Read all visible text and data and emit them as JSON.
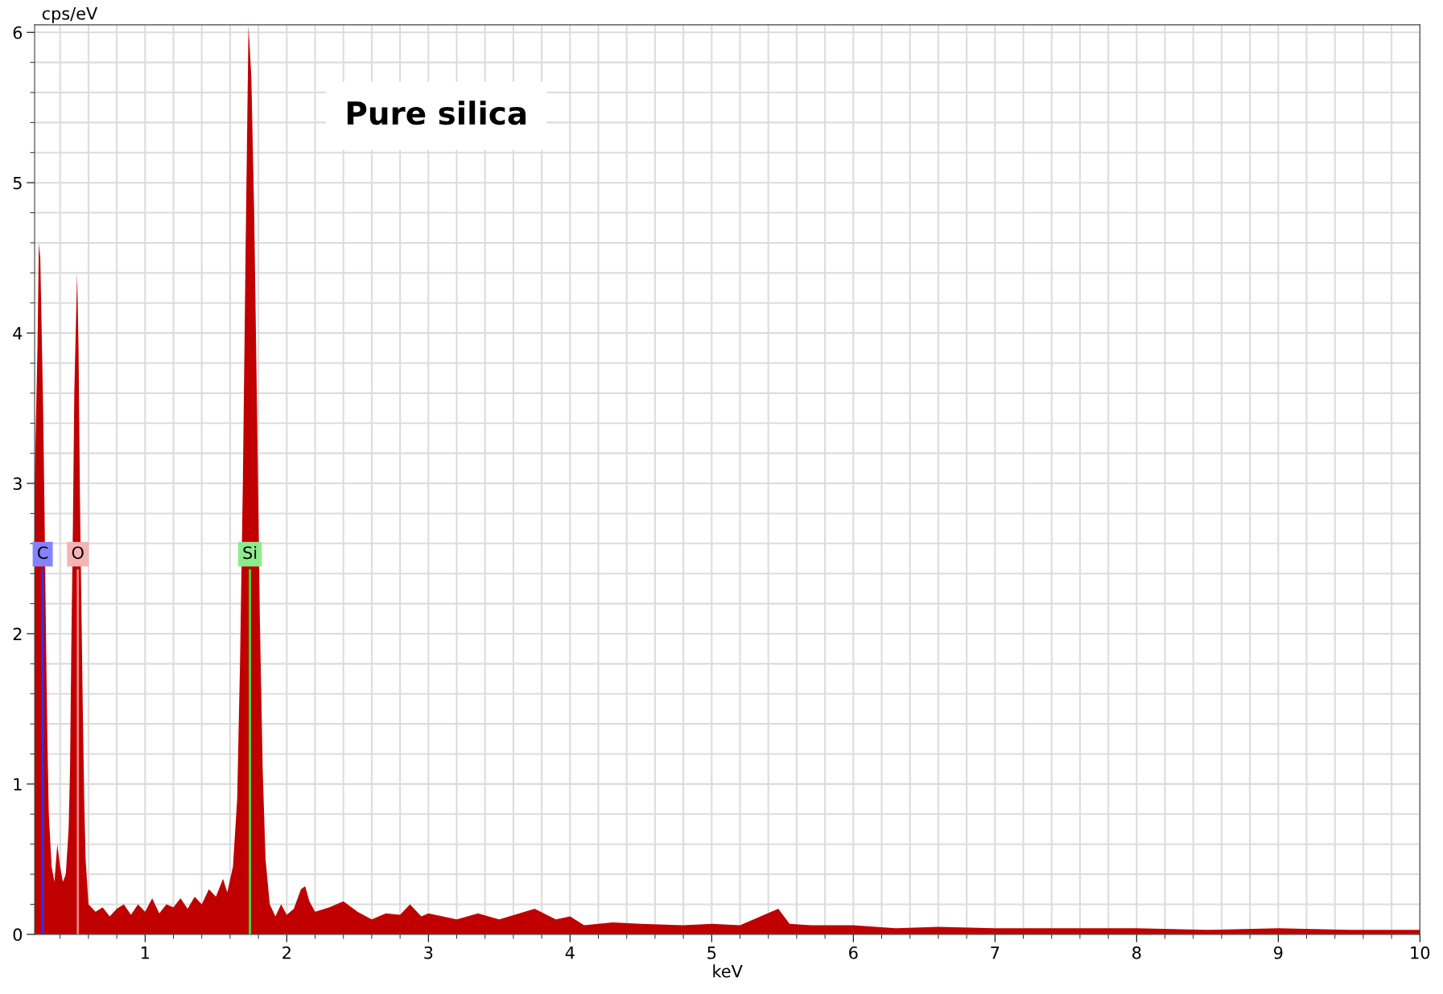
{
  "chart_data": {
    "type": "area",
    "xlabel": "keV",
    "ylabel": "cps/eV",
    "annotations": [
      "Pure silica"
    ],
    "x": [
      0.22,
      0.24,
      0.25,
      0.26,
      0.27,
      0.28,
      0.29,
      0.3,
      0.31,
      0.32,
      0.34,
      0.36,
      0.38,
      0.4,
      0.42,
      0.44,
      0.46,
      0.47,
      0.48,
      0.49,
      0.5,
      0.51,
      0.52,
      0.53,
      0.54,
      0.55,
      0.56,
      0.57,
      0.58,
      0.6,
      0.65,
      0.7,
      0.75,
      0.8,
      0.85,
      0.9,
      0.95,
      1.0,
      1.05,
      1.1,
      1.15,
      1.2,
      1.25,
      1.3,
      1.35,
      1.4,
      1.45,
      1.5,
      1.55,
      1.58,
      1.62,
      1.65,
      1.67,
      1.69,
      1.71,
      1.73,
      1.75,
      1.77,
      1.79,
      1.81,
      1.83,
      1.85,
      1.88,
      1.92,
      1.96,
      2.0,
      2.05,
      2.1,
      2.13,
      2.16,
      2.2,
      2.3,
      2.4,
      2.5,
      2.6,
      2.7,
      2.8,
      2.87,
      2.95,
      3.0,
      3.2,
      3.35,
      3.5,
      3.75,
      3.9,
      4.0,
      4.1,
      4.3,
      4.5,
      4.8,
      5.0,
      5.2,
      5.47,
      5.55,
      5.7,
      6.0,
      6.3,
      6.6,
      7.0,
      7.5,
      8.0,
      8.5,
      9.0,
      9.5,
      10.0
    ],
    "series": [
      {
        "color": "#c00000",
        "values": [
          3.0,
          3.9,
          4.6,
          4.5,
          4.0,
          3.5,
          2.8,
          2.0,
          1.3,
          0.8,
          0.45,
          0.35,
          0.6,
          0.45,
          0.35,
          0.4,
          0.7,
          1.1,
          2.0,
          2.7,
          3.6,
          4.0,
          4.4,
          3.9,
          2.9,
          2.2,
          1.5,
          0.9,
          0.5,
          0.2,
          0.15,
          0.18,
          0.12,
          0.17,
          0.2,
          0.13,
          0.2,
          0.15,
          0.24,
          0.14,
          0.2,
          0.18,
          0.24,
          0.17,
          0.25,
          0.2,
          0.3,
          0.25,
          0.37,
          0.28,
          0.45,
          0.9,
          1.8,
          3.0,
          4.6,
          6.05,
          5.7,
          4.8,
          3.5,
          2.1,
          1.1,
          0.5,
          0.2,
          0.12,
          0.2,
          0.13,
          0.17,
          0.3,
          0.32,
          0.22,
          0.15,
          0.18,
          0.22,
          0.15,
          0.1,
          0.14,
          0.13,
          0.2,
          0.12,
          0.14,
          0.1,
          0.14,
          0.1,
          0.17,
          0.1,
          0.12,
          0.06,
          0.08,
          0.07,
          0.06,
          0.07,
          0.06,
          0.17,
          0.07,
          0.06,
          0.06,
          0.04,
          0.05,
          0.04,
          0.04,
          0.04,
          0.03,
          0.04,
          0.03,
          0.03
        ]
      }
    ],
    "xlim": [
      0.22,
      10
    ],
    "xticks": [
      {
        "value": 0.4,
        "label": null
      },
      {
        "value": 0.6,
        "label": null
      },
      {
        "value": 0.8,
        "label": null
      },
      1,
      {
        "value": 1.2,
        "label": null
      },
      {
        "value": 1.4,
        "label": null
      },
      {
        "value": 1.6,
        "label": null
      },
      {
        "value": 1.8,
        "label": null
      },
      2,
      {
        "value": 2.2,
        "label": null
      },
      {
        "value": 2.4,
        "label": null
      },
      {
        "value": 2.6,
        "label": null
      },
      {
        "value": 2.8,
        "label": null
      },
      3,
      {
        "value": 3.2,
        "label": null
      },
      {
        "value": 3.4,
        "label": null
      },
      {
        "value": 3.6,
        "label": null
      },
      {
        "value": 3.8,
        "label": null
      },
      4,
      {
        "value": 4.2,
        "label": null
      },
      {
        "value": 4.4,
        "label": null
      },
      {
        "value": 4.6,
        "label": null
      },
      {
        "value": 4.8,
        "label": null
      },
      5,
      {
        "value": 5.2,
        "label": null
      },
      {
        "value": 5.4,
        "label": null
      },
      {
        "value": 5.6,
        "label": null
      },
      {
        "value": 5.8,
        "label": null
      },
      6,
      {
        "value": 6.2,
        "label": null
      },
      {
        "value": 6.4,
        "label": null
      },
      {
        "value": 6.6,
        "label": null
      },
      {
        "value": 6.8,
        "label": null
      },
      7,
      {
        "value": 7.2,
        "label": null
      },
      {
        "value": 7.4,
        "label": null
      },
      {
        "value": 7.6,
        "label": null
      },
      {
        "value": 7.8,
        "label": null
      },
      8,
      {
        "value": 8.2,
        "label": null
      },
      {
        "value": 8.4,
        "label": null
      },
      {
        "value": 8.6,
        "label": null
      },
      {
        "value": 8.8,
        "label": null
      },
      9,
      {
        "value": 9.2,
        "label": null
      },
      {
        "value": 9.4,
        "label": null
      },
      {
        "value": 9.6,
        "label": null
      },
      {
        "value": 9.8,
        "label": null
      },
      10
    ],
    "ylim": [
      0,
      6.05
    ],
    "yticks": [
      0,
      {
        "value": 0.2,
        "label": null
      },
      {
        "value": 0.4,
        "label": null
      },
      {
        "value": 0.6,
        "label": null
      },
      {
        "value": 0.8,
        "label": null
      },
      1,
      {
        "value": 1.2,
        "label": null
      },
      {
        "value": 1.4,
        "label": null
      },
      {
        "value": 1.6,
        "label": null
      },
      {
        "value": 1.8,
        "label": null
      },
      2,
      {
        "value": 2.2,
        "label": null
      },
      {
        "value": 2.4,
        "label": null
      },
      {
        "value": 2.6,
        "label": null
      },
      {
        "value": 2.8,
        "label": null
      },
      3,
      {
        "value": 3.2,
        "label": null
      },
      {
        "value": 3.4,
        "label": null
      },
      {
        "value": 3.6,
        "label": null
      },
      {
        "value": 3.8,
        "label": null
      },
      4,
      {
        "value": 4.2,
        "label": null
      },
      {
        "value": 4.4,
        "label": null
      },
      {
        "value": 4.6,
        "label": null
      },
      {
        "value": 4.8,
        "label": null
      },
      5,
      {
        "value": 5.2,
        "label": null
      },
      {
        "value": 5.4,
        "label": null
      },
      {
        "value": 5.6,
        "label": null
      },
      {
        "value": 5.8,
        "label": null
      },
      6
    ],
    "ref_lines": [
      {
        "axis": "x",
        "value": 0.277,
        "label": "C",
        "color": "#3030ff"
      },
      {
        "axis": "x",
        "value": 0.525,
        "label": "O",
        "color": "#f08080"
      },
      {
        "axis": "x",
        "value": 1.74,
        "label": "Si",
        "color": "#40e040"
      }
    ],
    "grid": true
  }
}
